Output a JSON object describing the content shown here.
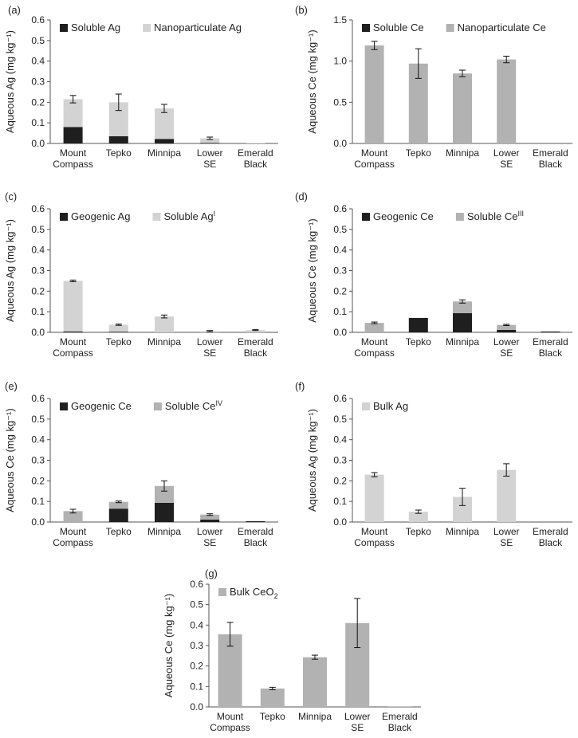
{
  "colors": {
    "dark": "#1f1f1f",
    "light": "#d3d3d3",
    "mid": "#b2b2b2"
  },
  "chart_data": [
    {
      "panel": "(a)",
      "type": "bar",
      "stacked": true,
      "ylabel": "Aqueous Ag (mg kg⁻¹)",
      "ylim": [
        0,
        0.6
      ],
      "yticks": [
        "0.0",
        "0.1",
        "0.2",
        "0.3",
        "0.4",
        "0.5",
        "0.6"
      ],
      "categories": [
        [
          "Mount",
          "Compass"
        ],
        [
          "Tepko"
        ],
        [
          "Minnipa"
        ],
        [
          "Lower",
          "SE"
        ],
        [
          "Emerald",
          "Black"
        ]
      ],
      "series": [
        {
          "name": "Soluble Ag",
          "color": "dark",
          "values": [
            0.08,
            0.035,
            0.022,
            0.003,
            0.0
          ]
        },
        {
          "name": "Nanoparticulate Ag",
          "color": "light",
          "values": [
            0.135,
            0.165,
            0.148,
            0.022,
            0.003
          ]
        }
      ],
      "error": [
        0.018,
        0.04,
        0.02,
        0.006,
        0.0
      ],
      "legend": "top"
    },
    {
      "panel": "(b)",
      "type": "bar",
      "stacked": true,
      "ylabel": "Aqueous Ce (mg kg⁻¹)",
      "ylim": [
        0,
        1.5
      ],
      "yticks": [
        "0.0",
        "0.5",
        "1.0",
        "1.5"
      ],
      "categories": [
        [
          "Mount",
          "Compass"
        ],
        [
          "Tepko"
        ],
        [
          "Minnipa"
        ],
        [
          "Lower",
          "SE"
        ],
        [
          "Emerald",
          "Black"
        ]
      ],
      "series": [
        {
          "name": "Soluble Ce",
          "color": "dark",
          "values": [
            0.0,
            0.0,
            0.0,
            0.0,
            0.0
          ]
        },
        {
          "name": "Nanoparticulate Ce",
          "color": "mid",
          "values": [
            1.19,
            0.97,
            0.85,
            1.02,
            0.0
          ]
        }
      ],
      "error": [
        0.05,
        0.18,
        0.04,
        0.04,
        0.0
      ],
      "legend": "top"
    },
    {
      "panel": "(c)",
      "type": "bar",
      "stacked": true,
      "ylabel": "Aqueous Ag (mg kg⁻¹)",
      "ylim": [
        0,
        0.6
      ],
      "yticks": [
        "0.0",
        "0.1",
        "0.2",
        "0.3",
        "0.4",
        "0.5",
        "0.6"
      ],
      "categories": [
        [
          "Mount",
          "Compass"
        ],
        [
          "Tepko"
        ],
        [
          "Minnipa"
        ],
        [
          "Lower",
          "SE"
        ],
        [
          "Emerald",
          "Black"
        ]
      ],
      "series": [
        {
          "name": "Geogenic Ag",
          "color": "dark",
          "values": [
            0.004,
            0.003,
            0.0,
            0.0,
            0.0
          ]
        },
        {
          "name": "Soluble Ag",
          "sup": "I",
          "color": "light",
          "values": [
            0.246,
            0.034,
            0.077,
            0.006,
            0.011
          ]
        }
      ],
      "error": [
        0.004,
        0.003,
        0.007,
        0.003,
        0.002
      ],
      "legend": "top"
    },
    {
      "panel": "(d)",
      "type": "bar",
      "stacked": true,
      "ylabel": "Aqueous Ce (mg kg⁻¹)",
      "ylim": [
        0,
        0.6
      ],
      "yticks": [
        "0.0",
        "0.1",
        "0.2",
        "0.3",
        "0.4",
        "0.5",
        "0.6"
      ],
      "categories": [
        [
          "Mount",
          "Compass"
        ],
        [
          "Tepko"
        ],
        [
          "Minnipa"
        ],
        [
          "Lower",
          "SE"
        ],
        [
          "Emerald",
          "Black"
        ]
      ],
      "series": [
        {
          "name": "Geogenic Ce",
          "color": "dark",
          "values": [
            0.0,
            0.07,
            0.093,
            0.012,
            0.004
          ]
        },
        {
          "name": "Soluble Ce",
          "sup": "III",
          "color": "mid",
          "values": [
            0.046,
            0.0,
            0.057,
            0.024,
            0.0
          ]
        }
      ],
      "error": [
        0.004,
        0.0,
        0.008,
        0.003,
        0.0
      ],
      "legend": "top"
    },
    {
      "panel": "(e)",
      "type": "bar",
      "stacked": true,
      "ylabel": "Aqueous Ce (mg kg⁻¹)",
      "ylim": [
        0,
        0.6
      ],
      "yticks": [
        "0.0",
        "0.1",
        "0.2",
        "0.3",
        "0.4",
        "0.5",
        "0.6"
      ],
      "categories": [
        [
          "Mount",
          "Compass"
        ],
        [
          "Tepko"
        ],
        [
          "Minnipa"
        ],
        [
          "Lower",
          "SE"
        ],
        [
          "Emerald",
          "Black"
        ]
      ],
      "series": [
        {
          "name": "Geogenic Ce",
          "color": "dark",
          "values": [
            0.0,
            0.065,
            0.093,
            0.012,
            0.004
          ]
        },
        {
          "name": "Soluble Ce",
          "sup": "IV",
          "color": "mid",
          "values": [
            0.053,
            0.033,
            0.082,
            0.024,
            0.0
          ]
        }
      ],
      "error": [
        0.009,
        0.004,
        0.025,
        0.004,
        0.0
      ],
      "legend": "top"
    },
    {
      "panel": "(f)",
      "type": "bar",
      "stacked": true,
      "ylabel": "Aqueous Ag (mg kg⁻¹)",
      "ylim": [
        0,
        0.6
      ],
      "yticks": [
        "0.0",
        "0.1",
        "0.2",
        "0.3",
        "0.4",
        "0.5",
        "0.6"
      ],
      "categories": [
        [
          "Mount",
          "Compass"
        ],
        [
          "Tepko"
        ],
        [
          "Minnipa"
        ],
        [
          "Lower",
          "SE"
        ],
        [
          "Emerald",
          "Black"
        ]
      ],
      "series": [
        {
          "name": "Bulk Ag",
          "color": "light",
          "values": [
            0.23,
            0.05,
            0.122,
            0.253,
            0.0
          ]
        }
      ],
      "error": [
        0.01,
        0.008,
        0.042,
        0.03,
        0.0
      ],
      "legend": "top"
    },
    {
      "panel": "(g)",
      "type": "bar",
      "stacked": true,
      "ylabel": "Aqueous Ce (mg kg⁻¹)",
      "ylim": [
        0,
        0.6
      ],
      "yticks": [
        "0.0",
        "0.1",
        "0.2",
        "0.3",
        "0.4",
        "0.5",
        "0.6"
      ],
      "categories": [
        [
          "Mount",
          "Compass"
        ],
        [
          "Tepko"
        ],
        [
          "Minnipa"
        ],
        [
          "Lower",
          "SE"
        ],
        [
          "Emerald",
          "Black"
        ]
      ],
      "series": [
        {
          "name": "Bulk CeO",
          "sub": "2",
          "color": "mid",
          "values": [
            0.355,
            0.09,
            0.243,
            0.41,
            0.003
          ]
        }
      ],
      "error": [
        0.058,
        0.006,
        0.01,
        0.12,
        0.0
      ],
      "legend": "top"
    }
  ]
}
